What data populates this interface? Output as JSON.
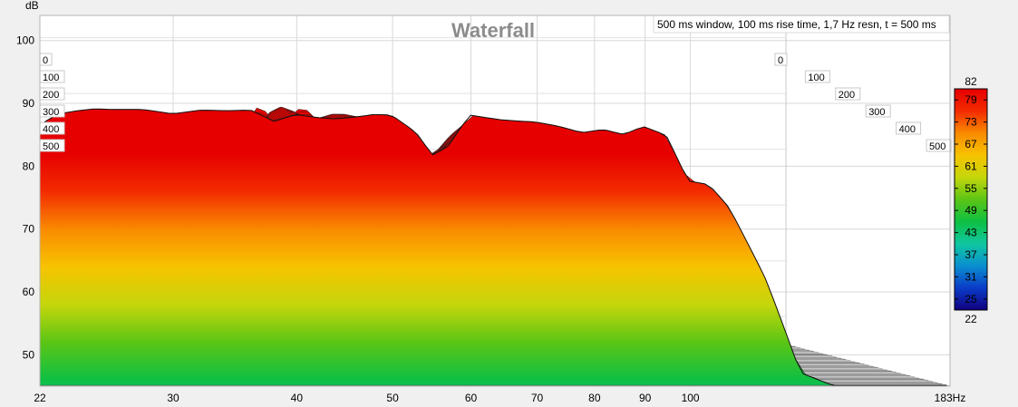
{
  "chart_data": {
    "type": "waterfall",
    "title": "Waterfall",
    "subtitle": "500 ms window, 100 ms rise time,  1,7 Hz resn, t = 500 ms",
    "ylabel": "dB",
    "xunit": "Hz",
    "ylim": [
      45,
      104
    ],
    "xlim": [
      22,
      183
    ],
    "x_scale": "log",
    "y_ticks": [
      50,
      60,
      70,
      80,
      90,
      100
    ],
    "x_ticks": [
      22,
      30,
      40,
      50,
      60,
      70,
      80,
      90,
      100,
      183
    ],
    "x_tick_labels": [
      "22",
      "30",
      "40",
      "50",
      "60",
      "70",
      "80",
      "90",
      "100",
      "183Hz"
    ],
    "time_ms": [
      0,
      100,
      200,
      300,
      400,
      500
    ],
    "time_labels": [
      "0",
      "100",
      "200",
      "300",
      "400",
      "500"
    ],
    "colorbar": {
      "min": 22,
      "max": 82,
      "ticks": [
        79,
        73,
        67,
        61,
        55,
        49,
        43,
        37,
        31,
        25
      ],
      "min_label": "22",
      "max_label": "82"
    },
    "front_slice": {
      "t_ms": 0,
      "freq_hz": [
        22,
        22.5,
        23,
        24,
        25,
        26,
        27,
        28,
        30,
        32,
        34,
        36,
        38,
        40,
        42,
        44,
        46,
        48,
        50,
        53,
        55,
        57,
        60,
        63,
        65,
        68,
        70,
        74,
        78,
        82,
        86,
        90,
        95,
        100,
        105,
        110,
        120,
        130,
        140,
        150,
        160,
        170,
        183
      ],
      "spl_db": [
        86.5,
        87.5,
        88.3,
        88.8,
        89.1,
        89.0,
        89.0,
        89.0,
        88.3,
        88.9,
        88.8,
        88.9,
        87.1,
        88.2,
        87.7,
        87.5,
        87.8,
        88.2,
        88.1,
        85.3,
        81.7,
        83.0,
        88.1,
        87.6,
        87.3,
        87.1,
        87.0,
        86.3,
        85.3,
        85.8,
        85.0,
        86.3,
        84.9,
        77.6,
        77.0,
        73.4,
        61.8,
        47.0,
        45.0,
        45.0,
        45.0,
        45.0,
        45.0
      ]
    },
    "colors": {
      "plot_bg": "#ffffff",
      "floor": "#eeeeee",
      "grid": "#d8d8d8",
      "frame": "#b4b4b4",
      "colormap": [
        "#10007f",
        "#0a3cc8",
        "#0a8fcf",
        "#10c6a0",
        "#0ec043",
        "#5cc515",
        "#c5d60b",
        "#f7c300",
        "#f98a00",
        "#f32b00",
        "#e60000"
      ]
    }
  }
}
